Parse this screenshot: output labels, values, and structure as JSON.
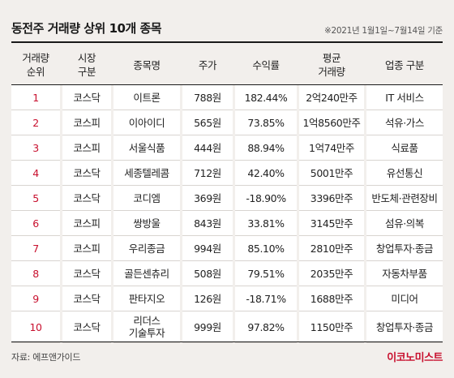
{
  "title": "동전주 거래량 상위 10개 종목",
  "note": "※2021년 1월1일~7월14일 기준",
  "headers": {
    "rank": "거래량\n순위",
    "market": "시장\n구분",
    "name": "종목명",
    "price": "주가",
    "return": "수익률",
    "volume": "평균\n거래량",
    "sector": "업종 구분"
  },
  "rows": [
    {
      "rank": "1",
      "market": "코스닥",
      "name": "이트론",
      "price": "788원",
      "return": "182.44%",
      "volume": "2억240만주",
      "sector": "IT 서비스"
    },
    {
      "rank": "2",
      "market": "코스피",
      "name": "이아이디",
      "price": "565원",
      "return": "73.85%",
      "volume": "1억8560만주",
      "sector": "석유·가스"
    },
    {
      "rank": "3",
      "market": "코스피",
      "name": "서울식품",
      "price": "444원",
      "return": "88.94%",
      "volume": "1억74만주",
      "sector": "식료품"
    },
    {
      "rank": "4",
      "market": "코스닥",
      "name": "세종텔레콤",
      "price": "712원",
      "return": "42.40%",
      "volume": "5001만주",
      "sector": "유선통신"
    },
    {
      "rank": "5",
      "market": "코스닥",
      "name": "코디엠",
      "price": "369원",
      "return": "-18.90%",
      "volume": "3396만주",
      "sector": "반도체·관련장비"
    },
    {
      "rank": "6",
      "market": "코스피",
      "name": "쌍방울",
      "price": "843원",
      "return": "33.81%",
      "volume": "3145만주",
      "sector": "섬유·의복"
    },
    {
      "rank": "7",
      "market": "코스피",
      "name": "우리종금",
      "price": "994원",
      "return": "85.10%",
      "volume": "2810만주",
      "sector": "창업투자·종금"
    },
    {
      "rank": "8",
      "market": "코스닥",
      "name": "골든센츄리",
      "price": "508원",
      "return": "79.51%",
      "volume": "2035만주",
      "sector": "자동차부품"
    },
    {
      "rank": "9",
      "market": "코스닥",
      "name": "판타지오",
      "price": "126원",
      "return": "-18.71%",
      "volume": "1688만주",
      "sector": "미디어"
    },
    {
      "rank": "10",
      "market": "코스닥",
      "name": "리더스\n기술투자",
      "price": "999원",
      "return": "97.82%",
      "volume": "1150만주",
      "sector": "창업투자·종금"
    }
  ],
  "source": "자료: 에프앤가이드",
  "brand": "이코노미스트",
  "colors": {
    "background": "#f2efec",
    "rank_accent": "#c8102e",
    "brand": "#c8102e"
  }
}
